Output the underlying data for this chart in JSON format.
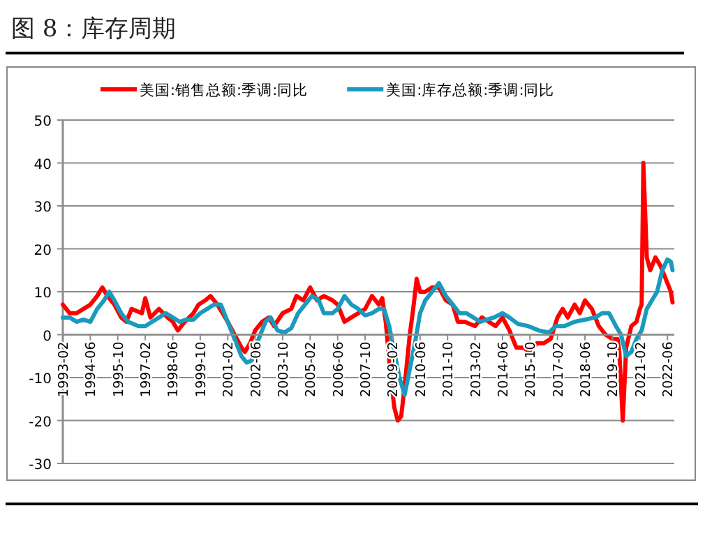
{
  "chart_data": {
    "type": "line",
    "title": "图 8：库存周期",
    "series": [
      {
        "name": "美国:销售总额:季调:同比",
        "color": "#ff0000",
        "x": [
          "1993-02",
          "1993-06",
          "1993-10",
          "1994-02",
          "1994-06",
          "1994-10",
          "1995-01",
          "1995-04",
          "1995-08",
          "1995-12",
          "1996-03",
          "1996-06",
          "1996-12",
          "1997-02",
          "1997-05",
          "1997-10",
          "1998-03",
          "1998-06",
          "1998-09",
          "1999-01",
          "1999-06",
          "1999-09",
          "2000-01",
          "2000-04",
          "2000-08",
          "2001-02",
          "2001-06",
          "2001-10",
          "2001-12",
          "2002-03",
          "2002-06",
          "2002-10",
          "2003-02",
          "2003-05",
          "2003-10",
          "2004-03",
          "2004-06",
          "2004-10",
          "2005-02",
          "2005-06",
          "2005-10",
          "2006-03",
          "2006-06",
          "2006-10",
          "2007-02",
          "2007-06",
          "2007-10",
          "2008-02",
          "2008-06",
          "2008-08",
          "2008-10",
          "2009-01",
          "2009-03",
          "2009-05",
          "2009-07",
          "2009-09",
          "2009-12",
          "2010-02",
          "2010-04",
          "2010-06",
          "2010-09",
          "2011-01",
          "2011-05",
          "2011-09",
          "2012-01",
          "2012-04",
          "2012-08",
          "2013-02",
          "2013-06",
          "2013-10",
          "2014-02",
          "2014-06",
          "2014-10",
          "2015-02",
          "2015-06",
          "2015-10",
          "2016-02",
          "2016-06",
          "2016-10",
          "2017-02",
          "2017-05",
          "2017-08",
          "2017-12",
          "2018-03",
          "2018-06",
          "2018-10",
          "2019-02",
          "2019-06",
          "2019-10",
          "2020-01",
          "2020-02",
          "2020-04",
          "2020-06",
          "2020-09",
          "2020-12",
          "2021-02",
          "2021-03",
          "2021-04",
          "2021-06",
          "2021-08",
          "2021-11",
          "2022-02",
          "2022-04",
          "2022-06",
          "2022-08",
          "2022-09"
        ],
        "values": [
          7,
          5,
          5,
          6,
          7,
          9,
          11,
          9,
          7,
          4,
          3,
          6,
          5,
          8.5,
          4,
          6,
          4,
          3,
          1,
          3,
          5,
          7,
          8,
          9,
          7,
          3,
          0,
          -3,
          -4,
          -2,
          1,
          3,
          4,
          2,
          5,
          6,
          9,
          8,
          11,
          8,
          9,
          8,
          7,
          3,
          4,
          5,
          6,
          9,
          7,
          8.5,
          3,
          -10,
          -17,
          -20,
          -19,
          -12,
          0,
          6,
          13,
          10,
          10,
          11,
          11,
          8,
          7,
          3,
          3,
          2,
          4,
          3,
          2,
          4,
          1,
          -3,
          -3,
          -4,
          -2,
          -2,
          -1,
          4,
          6,
          4,
          7,
          5,
          8,
          6,
          2,
          0,
          -1,
          -1,
          -4,
          -20,
          -3,
          2,
          3,
          6,
          7,
          40,
          18,
          15,
          18,
          16,
          14,
          12,
          10,
          7.5
        ]
      },
      {
        "name": "美国:库存总额:季调:同比",
        "color": "#1a9bbd",
        "x": [
          "1993-02",
          "1993-06",
          "1993-10",
          "1994-02",
          "1994-06",
          "1994-10",
          "1995-02",
          "1995-05",
          "1995-08",
          "1995-12",
          "1996-04",
          "1996-10",
          "1997-02",
          "1997-06",
          "1997-10",
          "1998-02",
          "1998-06",
          "1998-10",
          "1999-02",
          "1999-06",
          "1999-10",
          "2000-02",
          "2000-06",
          "2000-10",
          "2001-02",
          "2001-06",
          "2001-10",
          "2002-01",
          "2002-04",
          "2002-08",
          "2002-12",
          "2003-03",
          "2003-07",
          "2003-11",
          "2004-03",
          "2004-07",
          "2004-11",
          "2005-03",
          "2005-07",
          "2005-10",
          "2006-03",
          "2006-06",
          "2006-10",
          "2007-02",
          "2007-06",
          "2007-10",
          "2008-02",
          "2008-06",
          "2008-09",
          "2008-12",
          "2009-03",
          "2009-06",
          "2009-09",
          "2009-12",
          "2010-03",
          "2010-06",
          "2010-09",
          "2011-01",
          "2011-05",
          "2011-09",
          "2012-01",
          "2012-05",
          "2012-09",
          "2013-01",
          "2013-05",
          "2013-09",
          "2014-01",
          "2014-06",
          "2014-10",
          "2015-03",
          "2015-09",
          "2016-03",
          "2016-09",
          "2017-01",
          "2017-06",
          "2017-12",
          "2018-06",
          "2018-12",
          "2019-04",
          "2019-08",
          "2019-12",
          "2020-03",
          "2020-06",
          "2020-09",
          "2020-12",
          "2021-03",
          "2021-06",
          "2021-09",
          "2021-12",
          "2022-03",
          "2022-06",
          "2022-08",
          "2022-09"
        ],
        "values": [
          4,
          4,
          3,
          3.5,
          3,
          6,
          8,
          10,
          8,
          5,
          3,
          2,
          2,
          3,
          4,
          5,
          4,
          3,
          3.5,
          3.5,
          5,
          6,
          7,
          7,
          3,
          -1,
          -5,
          -6.5,
          -6,
          -1,
          3,
          4,
          1,
          0.5,
          1.5,
          5,
          7,
          9,
          8,
          5,
          5,
          6,
          9,
          7,
          6,
          4.5,
          5,
          6,
          6,
          2,
          -4,
          -10,
          -14,
          -8,
          -2,
          5,
          8,
          10,
          12,
          9,
          7,
          5,
          5,
          4,
          3,
          3.5,
          4,
          5,
          4,
          2.5,
          2,
          1,
          0.5,
          2,
          2,
          3,
          3.5,
          4,
          5,
          5,
          2,
          0,
          -5,
          -4,
          -1,
          1,
          6,
          8,
          10,
          15,
          17.5,
          17,
          15
        ]
      }
    ],
    "xlim": [
      "1993-02",
      "2022-10"
    ],
    "xticks": [
      {
        "value": "1993-02",
        "label": "1993-02"
      },
      {
        "value": "1994-06",
        "label": "1994-06"
      },
      {
        "value": "1995-10",
        "label": "1995-10"
      },
      {
        "value": "1997-02",
        "label": "1997-02"
      },
      {
        "value": "1998-06",
        "label": "1998-06"
      },
      {
        "value": "1999-10",
        "label": "1999-10"
      },
      {
        "value": "2001-02",
        "label": "2001-02"
      },
      {
        "value": "2002-06",
        "label": "2002-06"
      },
      {
        "value": "2003-10",
        "label": "2003-10"
      },
      {
        "value": "2005-02",
        "label": "2005-02"
      },
      {
        "value": "2006-06",
        "label": "2006-06"
      },
      {
        "value": "2007-10",
        "label": "2007-10"
      },
      {
        "value": "2009-02",
        "label": "2009-02"
      },
      {
        "value": "2010-06",
        "label": "2010-06"
      },
      {
        "value": "2011-10",
        "label": "2011-10"
      },
      {
        "value": "2013-02",
        "label": "2013-02"
      },
      {
        "value": "2014-06",
        "label": "2014-06"
      },
      {
        "value": "2015-10",
        "label": "2015-10"
      },
      {
        "value": "2017-02",
        "label": "2017-02"
      },
      {
        "value": "2018-06",
        "label": "2018-06"
      },
      {
        "value": "2019-10",
        "label": "2019-10"
      },
      {
        "value": "2021-02",
        "label": "2021-02"
      },
      {
        "value": "2022-06",
        "label": "2022-06"
      }
    ],
    "ylim": [
      -30,
      50
    ],
    "yticks": [
      -30,
      -20,
      -10,
      0,
      10,
      20,
      30,
      40,
      50
    ],
    "grid": "y",
    "legend": "top",
    "line_style": "solid"
  }
}
